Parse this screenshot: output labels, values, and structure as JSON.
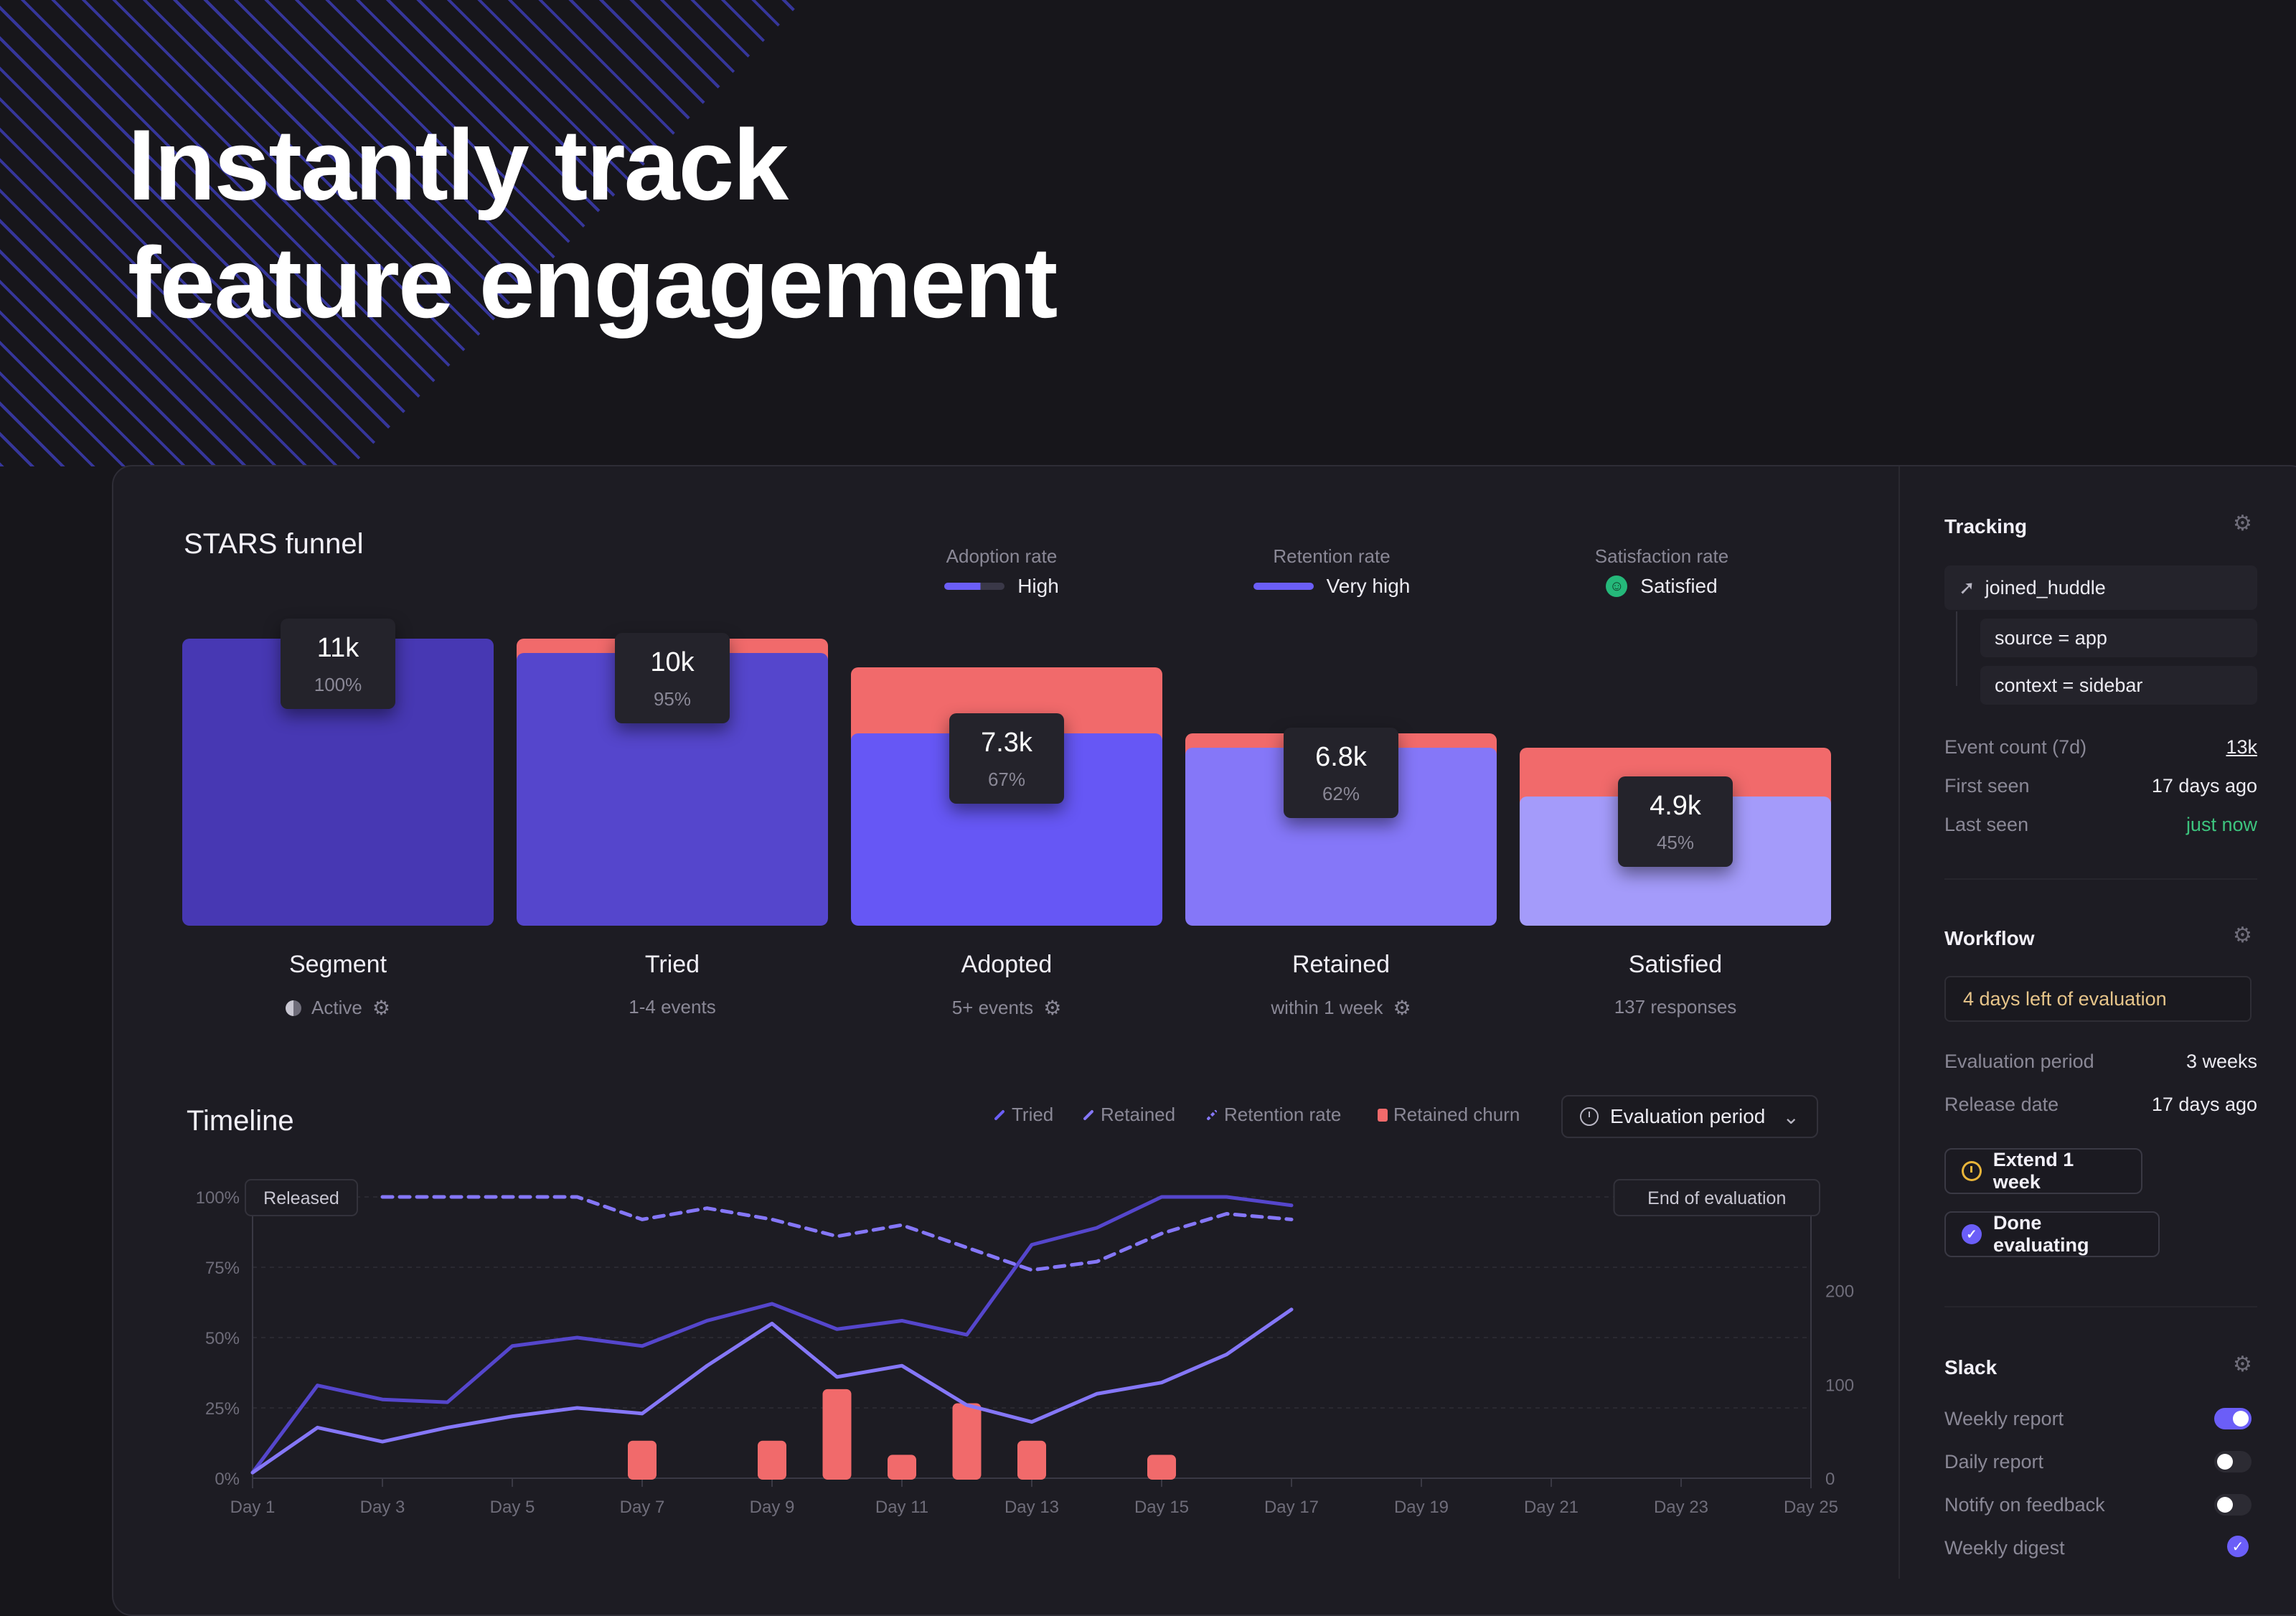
{
  "hero": {
    "line1": "Instantly track",
    "line2": "feature engagement"
  },
  "funnel": {
    "title": "STARS funnel",
    "metrics": [
      {
        "label": "Adoption rate",
        "value": "High"
      },
      {
        "label": "Retention rate",
        "value": "Very high"
      },
      {
        "label": "Satisfaction rate",
        "value": "Satisfied"
      }
    ],
    "stages": [
      {
        "name": "Segment",
        "value": "11k",
        "percent": "100%",
        "sub": "Active",
        "fill_color": "#4738b3",
        "level": 1.0,
        "churn_level": 1.0
      },
      {
        "name": "Tried",
        "value": "10k",
        "percent": "95%",
        "sub": "1-4 events",
        "fill_color": "#5546cc",
        "level": 0.95,
        "churn_level": 1.0
      },
      {
        "name": "Adopted",
        "value": "7.3k",
        "percent": "67%",
        "sub": "5+ events",
        "fill_color": "#6657f5",
        "level": 0.67,
        "churn_level": 0.9
      },
      {
        "name": "Retained",
        "value": "6.8k",
        "percent": "62%",
        "sub": "within 1 week",
        "fill_color": "#8577f8",
        "level": 0.62,
        "churn_level": 0.67
      },
      {
        "name": "Satisfied",
        "value": "4.9k",
        "percent": "45%",
        "sub": "137 responses",
        "fill_color": "#a49bfa",
        "level": 0.45,
        "churn_level": 0.62
      }
    ],
    "colors": {
      "churn": "#f16a6b",
      "accent": "#6b5ef8",
      "satisfied": "#25b87a"
    }
  },
  "timeline": {
    "title": "Timeline",
    "legend": [
      "Tried",
      "Retained",
      "Retention rate",
      "Retained churn"
    ],
    "select_value": "Evaluation period",
    "annotations": {
      "released": "Released",
      "end": "End of evaluation"
    }
  },
  "chart_data": {
    "type": "line",
    "x_ticks": [
      "Day 1",
      "Day 3",
      "Day 5",
      "Day 7",
      "Day 9",
      "Day 11",
      "Day 13",
      "Day 15",
      "Day 17",
      "Day 19",
      "Day 21",
      "Day 23",
      "Day 25"
    ],
    "y_left_ticks": [
      "0%",
      "25%",
      "50%",
      "75%",
      "100%"
    ],
    "y_right_ticks": [
      "0",
      "100",
      "200"
    ],
    "y_left_range": [
      0,
      100
    ],
    "y_right_range": [
      0,
      300
    ],
    "series": [
      {
        "name": "Tried",
        "axis": "left",
        "style": "solid",
        "x": [
          1,
          2,
          3,
          4,
          5,
          6,
          7,
          8,
          9,
          10,
          11,
          12,
          13,
          14,
          15,
          16,
          17
        ],
        "values": [
          2,
          33,
          28,
          27,
          47,
          50,
          47,
          56,
          62,
          53,
          56,
          51,
          83,
          89,
          100,
          100,
          97
        ]
      },
      {
        "name": "Retained",
        "axis": "left",
        "style": "solid",
        "x": [
          1,
          2,
          3,
          4,
          5,
          6,
          7,
          8,
          9,
          10,
          11,
          12,
          13,
          14,
          15,
          16,
          17
        ],
        "values": [
          2,
          18,
          13,
          18,
          22,
          25,
          23,
          40,
          55,
          36,
          40,
          26,
          20,
          30,
          34,
          44,
          60
        ]
      },
      {
        "name": "Retention rate",
        "axis": "left",
        "style": "dashed",
        "x": [
          3,
          4,
          5,
          6,
          7,
          8,
          9,
          10,
          11,
          12,
          13,
          14,
          15,
          16,
          17
        ],
        "values": [
          100,
          100,
          100,
          100,
          92,
          96,
          92,
          86,
          90,
          82,
          74,
          77,
          87,
          94,
          92
        ]
      },
      {
        "name": "Retained churn",
        "axis": "right",
        "type": "bar",
        "x": [
          7,
          9,
          10,
          11,
          12,
          13,
          15
        ],
        "values": [
          40,
          40,
          95,
          25,
          80,
          40,
          25
        ]
      }
    ]
  },
  "sidebar": {
    "tracking": {
      "title": "Tracking",
      "event": "joined_huddle",
      "filters": [
        "source = app",
        "context = sidebar"
      ],
      "rows": [
        {
          "k": "Event count (7d)",
          "v": "13k"
        },
        {
          "k": "First seen",
          "v": "17 days ago"
        },
        {
          "k": "Last seen",
          "v": "just now"
        }
      ]
    },
    "workflow": {
      "title": "Workflow",
      "notice": "4 days left of evaluation",
      "rows": [
        {
          "k": "Evaluation period",
          "v": "3 weeks"
        },
        {
          "k": "Release date",
          "v": "17 days ago"
        }
      ],
      "extend_label": "Extend 1 week",
      "done_label": "Done evaluating"
    },
    "slack": {
      "title": "Slack",
      "items": [
        {
          "label": "Weekly report",
          "on": true
        },
        {
          "label": "Daily report",
          "on": false
        },
        {
          "label": "Notify on feedback",
          "on": false
        },
        {
          "label": "Weekly digest",
          "on": true
        }
      ]
    }
  }
}
